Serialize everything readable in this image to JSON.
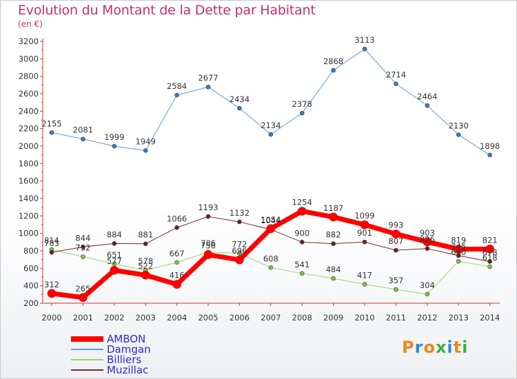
{
  "header": {
    "title": "Evolution du Montant de la Dette par Habitant",
    "unit": "(en €)"
  },
  "brand": {
    "letters": [
      "P",
      "r",
      "o",
      "x",
      "i",
      "t",
      "i"
    ],
    "colors": [
      "#e8891a",
      "#2d8ad6",
      "#e8891a",
      "#3db13d",
      "#2d8ad6",
      "#e8891a",
      "#3db13d"
    ]
  },
  "chart_data": {
    "type": "line",
    "x": [
      "2000",
      "2001",
      "2002",
      "2003",
      "2004",
      "2005",
      "2006",
      "2007",
      "2008",
      "2009",
      "2010",
      "2011",
      "2012",
      "2013",
      "2014"
    ],
    "ylim": [
      200,
      3200
    ],
    "yticks": [
      200,
      400,
      600,
      800,
      1000,
      1200,
      1400,
      1600,
      1800,
      2000,
      2200,
      2400,
      2600,
      2800,
      3000,
      3200
    ],
    "grid": false,
    "legend": "bottom-left",
    "series": [
      {
        "name": "Damgan",
        "color": "#5b9bd5",
        "marker": "#3a7bc0",
        "width": 1,
        "values": [
          2155,
          2081,
          1999,
          1949,
          2584,
          2677,
          2434,
          2134,
          2378,
          2868,
          3113,
          2714,
          2464,
          2130,
          1898
        ]
      },
      {
        "name": "Billiers",
        "color": "#9ad36a",
        "marker": "#7bc043",
        "width": 1,
        "values": [
          814,
          732,
          651,
          578,
          667,
          786,
          772,
          608,
          541,
          484,
          417,
          357,
          304,
          680,
          618
        ]
      },
      {
        "name": "Muzillac",
        "color": "#7a2a2a",
        "marker": "#6b1f1f",
        "width": 1,
        "values": [
          783,
          844,
          884,
          881,
          1066,
          1193,
          1132,
          1044,
          900,
          882,
          901,
          807,
          826,
          745,
          678
        ]
      },
      {
        "name": "AMBON",
        "color": "#ff0000",
        "marker": "#ff0000",
        "width": 7,
        "values": [
          312,
          265,
          577,
          522,
          416,
          756,
          696,
          1054,
          1254,
          1187,
          1099,
          993,
          903,
          819,
          821
        ]
      }
    ]
  }
}
